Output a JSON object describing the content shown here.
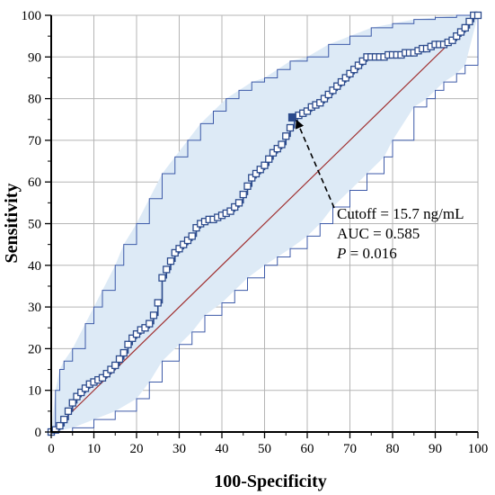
{
  "chart_data": {
    "type": "line",
    "xlabel": "100-Specificity",
    "ylabel": "Sensitivity",
    "xlim": [
      0,
      100
    ],
    "ylim": [
      0,
      100
    ],
    "x_ticks": [
      0,
      10,
      20,
      30,
      40,
      50,
      60,
      70,
      80,
      90,
      100
    ],
    "y_ticks": [
      0,
      10,
      20,
      30,
      40,
      50,
      60,
      70,
      80,
      90,
      100
    ],
    "grid": true,
    "series": [
      {
        "role": "roc_curve",
        "color": "#2b4a8c",
        "marker": "open-square",
        "x": [
          0,
          1,
          2,
          3,
          4,
          5,
          6,
          7,
          8,
          9,
          10,
          11,
          12,
          13,
          14,
          15,
          16,
          17,
          18,
          19,
          20,
          21,
          22,
          23,
          24,
          25,
          26,
          27,
          28,
          29,
          30,
          31,
          32,
          33,
          34,
          35,
          36,
          37,
          38,
          39,
          40,
          41,
          42,
          43,
          44,
          45,
          46,
          47,
          48,
          49,
          50,
          51,
          52,
          53,
          54,
          55,
          56,
          57,
          58,
          59,
          60,
          61,
          62,
          63,
          64,
          65,
          66,
          67,
          68,
          69,
          70,
          71,
          72,
          73,
          74,
          75,
          76,
          77,
          78,
          79,
          80,
          81,
          82,
          83,
          84,
          85,
          86,
          87,
          88,
          89,
          90,
          91,
          92,
          93,
          94,
          95,
          96,
          97,
          98,
          99,
          100
        ],
        "y": [
          0,
          0.5,
          1.5,
          3,
          5,
          7,
          8.5,
          9.5,
          10.5,
          11.5,
          12,
          12.5,
          13,
          14,
          15,
          16,
          17.5,
          19,
          21,
          22.5,
          23.5,
          24.5,
          25,
          26,
          28,
          31,
          37,
          39,
          41,
          43,
          44,
          45,
          46,
          47,
          49,
          50,
          50.5,
          51,
          51,
          51.5,
          52,
          52.5,
          53,
          54,
          55,
          57,
          59,
          61,
          62,
          63,
          64,
          65.5,
          67,
          68,
          69,
          71,
          73,
          75.5,
          76,
          76.5,
          77,
          78,
          78.5,
          79,
          80,
          81,
          82,
          83,
          84,
          85,
          86,
          87,
          88,
          89,
          90,
          90,
          90,
          90,
          90,
          90.5,
          90.5,
          90.5,
          90.5,
          91,
          91,
          91,
          91.5,
          92,
          92,
          92.5,
          93,
          93,
          93,
          93.5,
          94,
          95,
          96,
          97,
          98.5,
          100,
          100
        ]
      },
      {
        "role": "ci_upper",
        "color": "#3d5aa8",
        "x": [
          0,
          1,
          2,
          3,
          5,
          8,
          10,
          12,
          15,
          17,
          20,
          23,
          26,
          29,
          32,
          35,
          38,
          41,
          44,
          47,
          50,
          53,
          56,
          60,
          65,
          70,
          75,
          80,
          85,
          90,
          95,
          100
        ],
        "y": [
          0,
          10,
          15,
          17,
          20,
          26,
          30,
          34,
          40,
          45,
          50,
          56,
          62,
          66,
          70,
          74,
          77,
          80,
          82,
          84,
          85,
          87,
          89,
          90,
          93,
          95,
          97,
          98,
          99,
          99.5,
          100,
          100
        ]
      },
      {
        "role": "ci_lower",
        "color": "#3d5aa8",
        "x": [
          0,
          5,
          10,
          15,
          20,
          23,
          26,
          30,
          33,
          36,
          40,
          43,
          46,
          50,
          53,
          56,
          60,
          63,
          66,
          70,
          74,
          78,
          80,
          85,
          88,
          90,
          92,
          95,
          97,
          100
        ],
        "y": [
          0,
          1,
          3,
          5,
          8,
          12,
          17,
          21,
          24,
          28,
          31,
          34,
          37,
          40,
          42,
          44,
          47,
          50,
          54,
          58,
          62,
          66,
          70,
          78,
          80,
          82,
          84,
          86,
          88,
          100
        ]
      },
      {
        "role": "reference_line",
        "color": "#a03030",
        "x": [
          0,
          100
        ],
        "y": [
          0,
          100
        ]
      }
    ],
    "ci_fill_color": "#ddeaf6",
    "cutoff_point": {
      "x": 56.5,
      "y": 75.5,
      "color": "#2b4a8c"
    },
    "annotations": {
      "line1": "Cutoff = 15.7 ng/mL",
      "line2": "AUC = 0.585",
      "line3_italic": "P",
      "line3_rest": " = 0.016"
    }
  }
}
